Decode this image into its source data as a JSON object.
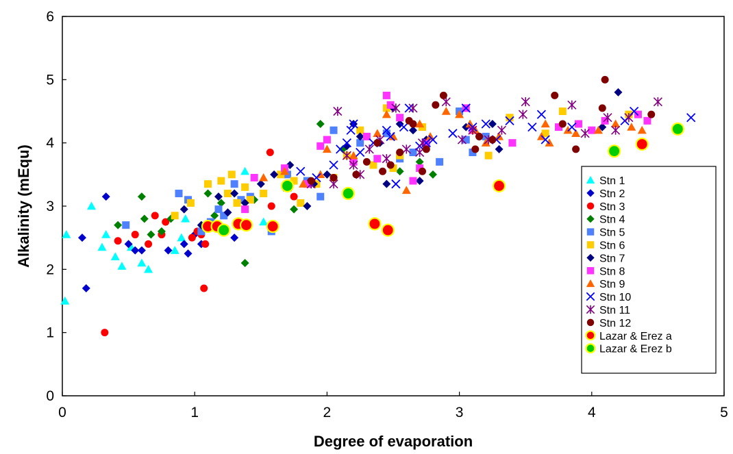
{
  "chart_data": {
    "type": "scatter",
    "title": "",
    "xlabel": "Degree of evaporation",
    "ylabel": "Alkalinity (mEqu)",
    "xlim": [
      0,
      5
    ],
    "ylim": [
      0,
      6
    ],
    "x_ticks": [
      "0",
      "1",
      "2",
      "3",
      "4",
      "5"
    ],
    "y_ticks": [
      "0",
      "1",
      "2",
      "3",
      "4",
      "5",
      "6"
    ],
    "grid": false,
    "legend_position": "right",
    "series": [
      {
        "name": "Stn 1",
        "marker": "triangle",
        "color": "#00ffff",
        "x": [
          0.02,
          0.03,
          0.22,
          0.3,
          0.33,
          0.4,
          0.45,
          0.52,
          0.6,
          0.65,
          0.85,
          0.9,
          0.93,
          1.38,
          1.52
        ],
        "y": [
          1.5,
          2.55,
          3.0,
          2.35,
          2.55,
          2.2,
          2.05,
          2.35,
          2.1,
          2.0,
          2.3,
          2.5,
          2.8,
          3.55,
          2.75
        ]
      },
      {
        "name": "Stn 2",
        "marker": "diamond",
        "color": "#0000cc",
        "x": [
          0.15,
          0.18,
          0.33,
          0.5,
          0.55,
          0.6,
          0.8,
          0.92,
          0.95,
          1.0,
          1.05,
          1.3
        ],
        "y": [
          2.5,
          1.7,
          3.15,
          2.4,
          2.3,
          2.3,
          2.3,
          2.4,
          2.25,
          2.55,
          2.4,
          2.5
        ]
      },
      {
        "name": "Stn 3",
        "marker": "circle",
        "color": "#ff0000",
        "x": [
          0.32,
          0.42,
          0.55,
          0.65,
          0.7,
          0.75,
          0.78,
          0.98,
          1.02,
          1.05,
          1.07,
          1.08,
          1.57,
          1.58,
          1.6,
          1.75
        ],
        "y": [
          1.0,
          2.45,
          2.55,
          2.4,
          2.85,
          2.55,
          2.75,
          2.5,
          2.6,
          2.55,
          1.7,
          2.4,
          3.85,
          3.0,
          2.7,
          3.15
        ]
      },
      {
        "name": "Stn 4",
        "marker": "diamond",
        "color": "#008000",
        "x": [
          0.42,
          0.6,
          0.62,
          0.67,
          0.75,
          0.82,
          1.05,
          1.1,
          1.15,
          1.2,
          1.38,
          1.45,
          1.75,
          1.95,
          2.12,
          2.55,
          2.7,
          2.8
        ],
        "y": [
          2.7,
          3.15,
          2.8,
          2.55,
          2.6,
          2.8,
          2.7,
          3.2,
          2.85,
          3.05,
          2.1,
          3.1,
          2.95,
          4.3,
          3.9,
          3.55,
          3.7,
          3.5
        ]
      },
      {
        "name": "Stn 5",
        "marker": "square",
        "color": "#4f81ff",
        "x": [
          0.48,
          0.88,
          0.95,
          1.05,
          1.12,
          1.18,
          1.22,
          1.3,
          1.35,
          1.42,
          1.58,
          1.7,
          1.85,
          1.95,
          2.05,
          2.25,
          2.45,
          2.55,
          2.65,
          2.85,
          3.0,
          3.05,
          3.1,
          3.2
        ],
        "y": [
          2.7,
          3.2,
          3.1,
          2.6,
          2.75,
          2.95,
          2.85,
          3.35,
          3.1,
          3.15,
          2.6,
          3.5,
          3.4,
          3.15,
          4.2,
          4.0,
          4.15,
          3.75,
          3.85,
          3.7,
          4.5,
          4.05,
          3.85,
          4.1
        ]
      },
      {
        "name": "Stn 6",
        "marker": "square",
        "color": "#ffcc00",
        "x": [
          0.85,
          0.97,
          1.1,
          1.2,
          1.25,
          1.28,
          1.32,
          1.38,
          1.42,
          1.52,
          1.65,
          1.75,
          1.8,
          1.92,
          2.05,
          2.15,
          2.25,
          2.35,
          2.45,
          2.5,
          2.55,
          2.72,
          3.22,
          3.38,
          3.65,
          3.78,
          4.28
        ],
        "y": [
          2.85,
          3.05,
          3.35,
          3.4,
          3.2,
          3.5,
          3.05,
          3.3,
          3.1,
          3.2,
          3.5,
          3.4,
          3.05,
          3.35,
          3.45,
          3.8,
          4.2,
          3.65,
          4.55,
          3.6,
          3.8,
          4.25,
          3.8,
          4.4,
          4.15,
          4.5,
          4.45
        ]
      },
      {
        "name": "Stn 7",
        "marker": "diamond",
        "color": "#000080",
        "x": [
          0.92,
          1.05,
          1.18,
          1.25,
          1.3,
          1.38,
          1.5,
          1.6,
          1.72,
          1.85,
          1.9,
          2.0,
          2.15,
          2.2,
          2.25,
          2.4,
          2.45,
          2.5,
          2.55,
          2.65,
          2.7,
          2.75,
          3.05,
          3.15,
          3.25,
          3.3,
          4.08,
          4.2
        ],
        "y": [
          2.95,
          2.7,
          3.15,
          2.9,
          3.2,
          3.05,
          3.35,
          3.5,
          3.65,
          3.0,
          3.35,
          3.5,
          3.95,
          4.3,
          4.1,
          4.0,
          3.35,
          4.55,
          4.3,
          4.2,
          3.4,
          4.05,
          4.25,
          4.1,
          4.3,
          3.9,
          4.25,
          4.8
        ]
      },
      {
        "name": "Stn 8",
        "marker": "square",
        "color": "#ff33ff",
        "x": [
          1.38,
          1.45,
          1.68,
          1.85,
          1.95,
          2.0,
          2.2,
          2.3,
          2.38,
          2.45,
          2.48,
          2.55,
          2.65,
          2.7,
          2.75,
          3.05,
          3.1,
          3.4,
          3.75,
          3.9,
          4.0,
          4.1,
          4.35,
          4.42
        ],
        "y": [
          2.95,
          3.45,
          3.6,
          3.35,
          3.95,
          4.05,
          3.7,
          4.1,
          3.75,
          4.75,
          4.6,
          4.4,
          3.4,
          3.6,
          4.0,
          4.55,
          4.2,
          4.0,
          4.25,
          4.3,
          4.2,
          4.35,
          4.45,
          4.35
        ]
      },
      {
        "name": "Stn 9",
        "marker": "triangle",
        "color": "#ff6600",
        "x": [
          1.52,
          1.68,
          1.82,
          1.95,
          2.0,
          2.2,
          2.38,
          2.45,
          2.5,
          2.6,
          2.7,
          2.78,
          2.9,
          3.0,
          3.08,
          3.12,
          3.2,
          3.3,
          3.62,
          3.65,
          3.68,
          3.82,
          3.88,
          4.05,
          4.18,
          4.3,
          4.38
        ],
        "y": [
          3.45,
          3.55,
          3.35,
          3.5,
          3.9,
          3.8,
          4.15,
          4.45,
          4.1,
          3.25,
          4.3,
          4.1,
          4.5,
          4.45,
          4.3,
          4.2,
          4.0,
          4.1,
          4.1,
          4.3,
          4.0,
          4.2,
          4.15,
          4.2,
          4.3,
          4.25,
          4.2
        ]
      },
      {
        "name": "Stn 10",
        "marker": "x",
        "color": "#0000ff",
        "x": [
          1.7,
          1.8,
          1.92,
          2.05,
          2.1,
          2.15,
          2.18,
          2.2,
          2.25,
          2.35,
          2.45,
          2.48,
          2.52,
          2.58,
          2.62,
          2.7,
          2.75,
          2.8,
          2.95,
          3.05,
          3.1,
          3.2,
          3.28,
          3.38,
          3.55,
          3.62,
          3.65,
          3.85,
          4.25,
          4.32,
          4.75
        ],
        "y": [
          3.3,
          3.55,
          3.45,
          3.65,
          3.9,
          4.0,
          4.2,
          4.3,
          3.85,
          4.0,
          4.2,
          4.1,
          3.35,
          4.25,
          4.55,
          3.95,
          4.0,
          4.05,
          4.15,
          4.55,
          4.25,
          4.3,
          4.05,
          4.35,
          4.25,
          4.45,
          4.05,
          4.25,
          4.35,
          4.5,
          4.4
        ]
      },
      {
        "name": "Stn 11",
        "marker": "star",
        "color": "#800080",
        "x": [
          1.88,
          2.05,
          2.08,
          2.15,
          2.2,
          2.25,
          2.32,
          2.4,
          2.45,
          2.52,
          2.6,
          2.65,
          2.7,
          2.72,
          2.9,
          3.02,
          3.1,
          3.22,
          3.32,
          3.48,
          3.5,
          3.85,
          3.95,
          4.12,
          4.18,
          4.28,
          4.5
        ],
        "y": [
          3.35,
          3.35,
          4.5,
          3.8,
          3.65,
          3.5,
          3.9,
          4.05,
          3.75,
          4.55,
          3.9,
          4.55,
          3.85,
          4.0,
          4.65,
          4.05,
          4.2,
          4.05,
          4.2,
          4.45,
          4.65,
          4.6,
          4.15,
          4.4,
          4.2,
          4.4,
          4.65
        ]
      },
      {
        "name": "Stn 12",
        "marker": "circle",
        "color": "#800000",
        "x": [
          1.88,
          2.05,
          2.22,
          2.3,
          2.38,
          2.42,
          2.48,
          2.55,
          2.62,
          2.65,
          2.72,
          2.75,
          2.82,
          2.88,
          3.12,
          3.15,
          3.25,
          3.72,
          3.78,
          3.88,
          4.08,
          4.1,
          4.45
        ],
        "y": [
          3.4,
          3.45,
          3.5,
          3.7,
          4.0,
          3.55,
          3.65,
          3.85,
          4.35,
          4.3,
          3.55,
          3.9,
          4.6,
          4.75,
          3.9,
          4.1,
          4.05,
          4.75,
          4.3,
          3.9,
          4.55,
          5.0,
          4.45
        ]
      },
      {
        "name": "Lazar & Erez a",
        "marker": "big-circle",
        "color": "#ff0000",
        "edge": "#ffff00",
        "x": [
          1.1,
          1.17,
          1.33,
          1.39,
          1.59,
          2.36,
          2.46,
          3.3,
          4.38
        ],
        "y": [
          2.68,
          2.68,
          2.72,
          2.7,
          2.68,
          2.72,
          2.62,
          3.32,
          3.98
        ]
      },
      {
        "name": "Lazar & Erez b",
        "marker": "big-circle",
        "color": "#00cc00",
        "edge": "#ffff00",
        "x": [
          1.22,
          1.7,
          2.16,
          4.17,
          4.65
        ],
        "y": [
          2.62,
          3.32,
          3.2,
          3.87,
          4.22
        ]
      }
    ]
  }
}
